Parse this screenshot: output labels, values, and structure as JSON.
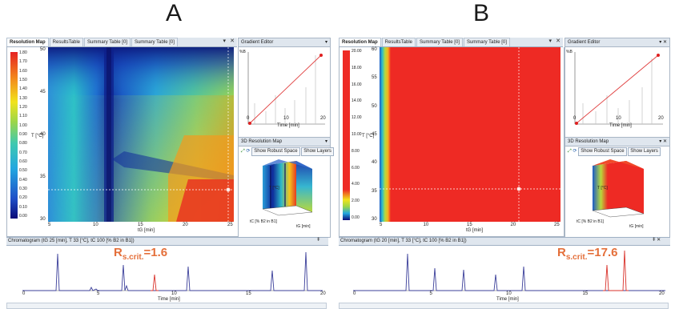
{
  "figure": {
    "label_a": "A",
    "label_b": "B"
  },
  "panelA": {
    "tabs": [
      "Resolution Map",
      "ResultsTable",
      "Summary Table [0]",
      "Summary Table [0]"
    ],
    "active_tab": 0,
    "colorbar_ticks": [
      "1.80",
      "1.70",
      "1.60",
      "1.50",
      "1.40",
      "1.30",
      "1.20",
      "1.10",
      "1.00",
      "0.90",
      "0.80",
      "0.70",
      "0.60",
      "0.50",
      "0.40",
      "0.30",
      "0.20",
      "0.10",
      "0.00"
    ],
    "y_axis_label": "T [°C]",
    "y_ticks": [
      "50",
      "45",
      "40",
      "35",
      "30"
    ],
    "x_ticks": [
      "5",
      "10",
      "15",
      "20",
      "25"
    ],
    "x_axis_label": "tG [min]",
    "gradient_editor": {
      "title": "Gradient Editor",
      "y_label": "%B",
      "x_label": "Time [min]",
      "x_ticks": [
        "0",
        "10",
        "20"
      ]
    },
    "res3d": {
      "title": "3D Resolution Map",
      "toolbar": [
        "Show Robust Space",
        "Show Layers"
      ],
      "x_label": "tG [min]",
      "y_label": "tC [% B2 in B1]",
      "z_label": "T [°C]"
    },
    "chromatogram": {
      "header": "Chromatogram (tG 25 [min], T 33 [°C], tC 100 [% B2 in B1])",
      "x_label": "Time [min]",
      "x_ticks": [
        "0",
        "5",
        "10",
        "15",
        "20"
      ],
      "rs_crit_label": "Rs.crit.=",
      "rs_crit_base": "R",
      "rs_crit_sub": "s.crit.",
      "rs_crit_tail": "=",
      "rs_crit_value": "1.6"
    }
  },
  "panelB": {
    "tabs": [
      "Resolution Map",
      "ResultsTable",
      "Summary Table [0]",
      "Summary Table [0]"
    ],
    "active_tab": 0,
    "colorbar_ticks": [
      "20.00",
      "18.00",
      "16.00",
      "14.00",
      "12.00",
      "10.00",
      "8.00",
      "6.00",
      "4.00",
      "2.00",
      "0.00"
    ],
    "y_axis_label": "T [°C]",
    "y_ticks": [
      "60",
      "55",
      "50",
      "45",
      "40",
      "35",
      "30"
    ],
    "x_ticks": [
      "5",
      "10",
      "15",
      "20",
      "25"
    ],
    "x_axis_label": "tG [min]",
    "gradient_editor": {
      "title": "Gradient Editor",
      "y_label": "%B",
      "x_label": "Time [min]",
      "x_ticks": [
        "0",
        "10",
        "20"
      ]
    },
    "res3d": {
      "title": "3D Resolution Map",
      "toolbar": [
        "Show Robust Space",
        "Show Layers"
      ],
      "x_label": "tG [min]",
      "y_label": "tC [% B2 in B1]",
      "z_label": "T [°C]"
    },
    "chromatogram": {
      "header": "Chromatogram (tG 20 [min], T 33 [°C], tC 100 [% B2 in B1])",
      "x_label": "Time [min]",
      "x_ticks": [
        "0",
        "5",
        "10",
        "15",
        "20"
      ],
      "rs_crit_base": "R",
      "rs_crit_sub": "s.crit.",
      "rs_crit_tail": "=",
      "rs_crit_value": "17.6"
    }
  },
  "colors": {
    "accent_red": "#e46f3a",
    "trace_blue": "#3b3f9a",
    "trace_red": "#d9312a",
    "map_red": "#ee2a24"
  }
}
